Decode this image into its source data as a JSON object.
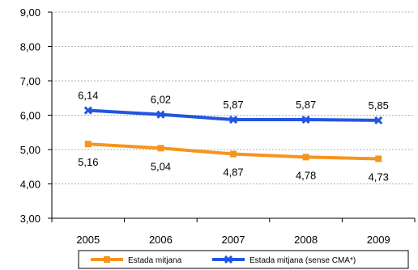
{
  "chart_data": {
    "type": "line",
    "x": [
      "2005",
      "2006",
      "2007",
      "2008",
      "2009"
    ],
    "ylim": [
      3.0,
      9.0
    ],
    "yticks": [
      "3,00",
      "4,00",
      "5,00",
      "6,00",
      "7,00",
      "8,00",
      "9,00"
    ],
    "grid": true,
    "legend_position": "bottom",
    "series": [
      {
        "name": "Estada mitjana",
        "values": [
          5.16,
          5.04,
          4.87,
          4.78,
          4.73
        ],
        "labels": [
          "5,16",
          "5,04",
          "4,87",
          "4,78",
          "4,73"
        ],
        "color": "#f7941d",
        "marker": "square"
      },
      {
        "name": "Estada mitjana (sense CMA*)",
        "values": [
          6.14,
          6.02,
          5.87,
          5.87,
          5.85
        ],
        "labels": [
          "6,14",
          "6,02",
          "5,87",
          "5,87",
          "5,85"
        ],
        "color": "#2255e0",
        "marker": "x"
      }
    ]
  }
}
